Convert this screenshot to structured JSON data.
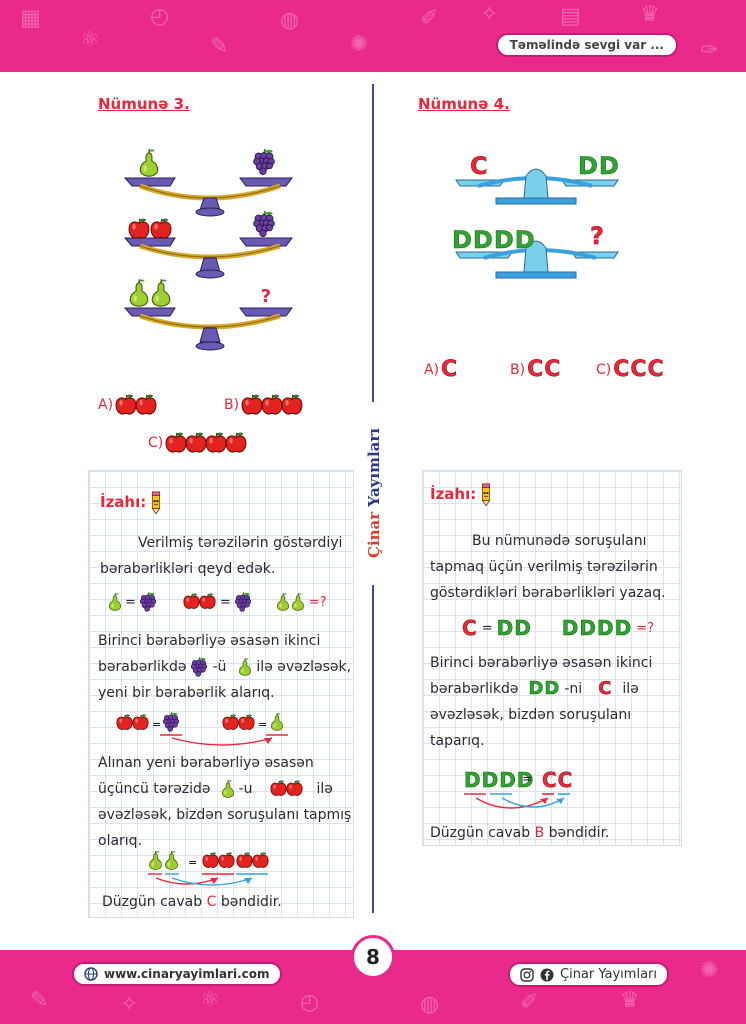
{
  "header": {
    "slogan": "Təməlində sevgi var ..."
  },
  "left": {
    "title": "Nümunə 3.",
    "answers": [
      {
        "label": "A)",
        "apples": 2
      },
      {
        "label": "B)",
        "apples": 3
      },
      {
        "label": "C)",
        "apples": 4
      }
    ],
    "explain": {
      "heading": "İzahı:",
      "p1": "Verilmiş tərəzilərin göstərdiyi bərabərlikləri qeyd edək.",
      "eq_q": "=?",
      "p2a": "Birinci bərabərliyə əsasən ikinci",
      "p2b": "bərabərlikdə",
      "p2c": "-ü",
      "p2d": "ilə əvəzləsək,",
      "p2e": "yeni bir bərabərlik alarıq.",
      "p3a": "Alınan yeni bərabərliyə əsasən",
      "p3b": "üçüncü tərəzidə",
      "p3c": "-u",
      "p3d": "ilə",
      "p3e": "əvəzləsək, bizdən soruşulanı tapmış",
      "p3f": "olarıq.",
      "final_pre": "Düzgün cavab",
      "final_letter": "C",
      "final_post": "bəndidir."
    }
  },
  "right": {
    "title": "Nümunə 4.",
    "scale1": {
      "left": "C",
      "right": "DD"
    },
    "scale2": {
      "left": "DDDD",
      "right": "?"
    },
    "answers": [
      {
        "label": "A)",
        "value": "C"
      },
      {
        "label": "B)",
        "value": "CC"
      },
      {
        "label": "C)",
        "value": "CCC"
      }
    ],
    "explain": {
      "heading": "İzahı:",
      "p1a": "Bu nümunədə soruşulanı",
      "p1b": "tapmaq üçün verilmiş tərəzilərin",
      "p1c": "göstərdikləri bərabərlikləri yazaq.",
      "eq1_left": "C",
      "eq1_right": "DD",
      "eq2_left": "DDDD",
      "eq2_q": "=?",
      "p2a": "Birinci bərabərliyə əsasən ikinci",
      "p2b": "bərabərlikdə",
      "p2c": "DD",
      "p2d": "-ni",
      "p2e": "C",
      "p2f": "ilə",
      "p2g": "əvəzləsək, bizdən soruşulanı",
      "p2h": "taparıq.",
      "eq3_left": "DDDD",
      "eq3_right": "CC",
      "final_pre": "Düzgün cavab",
      "final_letter": "B",
      "final_post": "bəndidir."
    }
  },
  "sidebar_brand": {
    "part1": "Çinar",
    "part2": "Yayımları"
  },
  "page_number": "8",
  "footer": {
    "website": "www.cinaryayimlari.com",
    "social": "Çinar Yayımları"
  },
  "colors": {
    "pink": "#ea2a8b",
    "red": "#e8283a",
    "green": "#2fa52f",
    "navy": "#2a3a8a"
  }
}
